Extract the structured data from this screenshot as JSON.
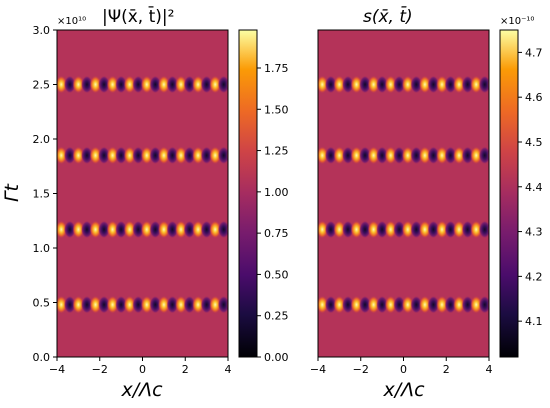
{
  "chart_data": [
    {
      "type": "heatmap",
      "title": "|Ψ(x̄, t̄)|²",
      "xlabel": "x/Λc",
      "ylabel": "Γt",
      "xlim": [
        -4,
        4
      ],
      "ylim": [
        0.0,
        3.0
      ],
      "x_ticks": [
        -4,
        -2,
        0,
        2,
        4
      ],
      "y_ticks": [
        0.0,
        0.5,
        1.0,
        1.5,
        2.0,
        2.5,
        3.0
      ],
      "bands_at_t": [
        0.48,
        1.17,
        1.85,
        2.5
      ],
      "spatial_period": 0.8,
      "background_value": 1.0,
      "colorbar": {
        "multiplier": "×10¹⁰",
        "range": [
          0.0,
          1.98
        ],
        "ticks": [
          "0.00",
          "0.25",
          "0.50",
          "0.75",
          "1.00",
          "1.25",
          "1.50",
          "1.75"
        ]
      },
      "colormap": "inferno"
    },
    {
      "type": "heatmap",
      "title": "s(x̄, t̄)",
      "xlabel": "x/Λc",
      "ylabel": "",
      "xlim": [
        -4,
        4
      ],
      "ylim": [
        0.0,
        3.0
      ],
      "x_ticks": [
        -4,
        -2,
        0,
        2,
        4
      ],
      "bands_at_t": [
        0.48,
        1.17,
        1.85,
        2.5
      ],
      "spatial_period": 0.8,
      "background_value": 4.33,
      "colorbar": {
        "multiplier": "×10⁻¹⁰",
        "range": [
          4.02,
          4.75
        ],
        "ticks": [
          "4.1",
          "4.2",
          "4.3",
          "4.4",
          "4.5",
          "4.6",
          "4.7"
        ]
      },
      "colormap": "inferno"
    }
  ],
  "labels": {
    "left_title": "|Ψ(x̄, t̄)|²",
    "right_title": "s(x̄, t̄)",
    "ylabel": "Γt",
    "xlabel": "x/Λc",
    "cb1_mult": "×10¹⁰",
    "cb2_mult": "×10⁻¹⁰"
  }
}
